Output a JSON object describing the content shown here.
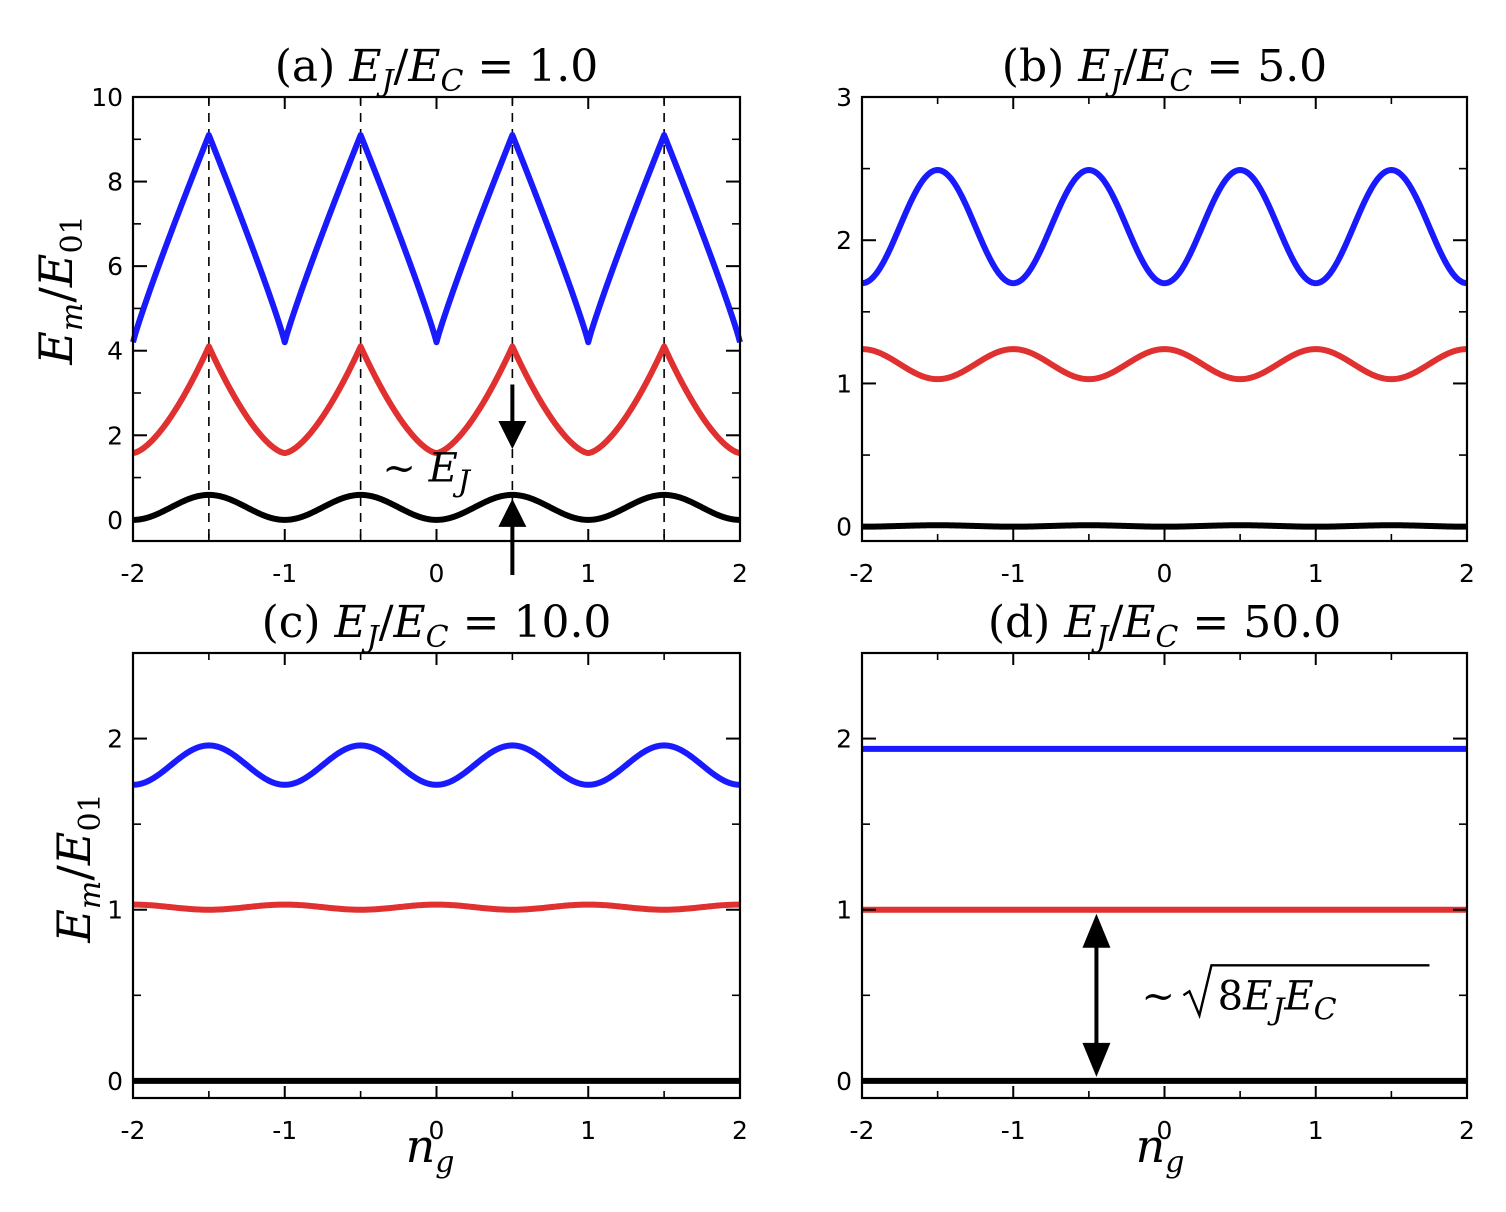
{
  "figure": {
    "ylabel_main": "E",
    "ylabel_sub": "m",
    "ylabel_den": "E",
    "ylabel_den_sub": "01",
    "xlabel_main": "n",
    "xlabel_sub": "g"
  },
  "colors": {
    "ground": "#000000",
    "first": "#e03030",
    "second": "#1a1aff"
  },
  "chart_data": [
    {
      "type": "line",
      "panel": "(a)",
      "title": "(a) E_J/E_C = 1.0",
      "title_parts": {
        "label": "(a)",
        "value": "1.0"
      },
      "ratio": 1.0,
      "xlim": [
        -2,
        2
      ],
      "ylim": [
        -0.5,
        10
      ],
      "xticks": [
        -2,
        -1,
        0,
        1,
        2
      ],
      "yticks": [
        0,
        2,
        4,
        6,
        8,
        10
      ],
      "xlabel": "",
      "ylabel": "E_m/E_01",
      "vlines": [
        -1.5,
        -0.5,
        0.5,
        1.5
      ],
      "series": [
        {
          "level": 0,
          "color": "#000000",
          "min": 0.0,
          "max": 0.59
        },
        {
          "level": 1,
          "color": "#e03030",
          "min": 1.58,
          "max": 4.1
        },
        {
          "level": 2,
          "color": "#1a1aff",
          "min": 4.2,
          "max": 9.1
        }
      ],
      "annotations": [
        {
          "text": "~ E_J",
          "main": "~ E",
          "sub": "J",
          "x": 0.5
        }
      ]
    },
    {
      "type": "line",
      "panel": "(b)",
      "title": "(b) E_J/E_C = 5.0",
      "title_parts": {
        "label": "(b)",
        "value": "5.0"
      },
      "ratio": 5.0,
      "xlim": [
        -2,
        2
      ],
      "ylim": [
        -0.1,
        3
      ],
      "xticks": [
        -2,
        -1,
        0,
        1,
        2
      ],
      "yticks": [
        0,
        1,
        2,
        3
      ],
      "xlabel": "",
      "ylabel": "",
      "series": [
        {
          "level": 0,
          "color": "#000000",
          "min": 0.0,
          "max": 0.01
        },
        {
          "level": 1,
          "color": "#e03030",
          "min": 1.03,
          "max": 1.24
        },
        {
          "level": 2,
          "color": "#1a1aff",
          "min": 1.7,
          "max": 2.49
        }
      ]
    },
    {
      "type": "line",
      "panel": "(c)",
      "title": "(c) E_J/E_C = 10.0",
      "title_parts": {
        "label": "(c)",
        "value": "10.0"
      },
      "ratio": 10.0,
      "xlim": [
        -2,
        2
      ],
      "ylim": [
        -0.1,
        2.5
      ],
      "xticks": [
        -2,
        -1,
        0,
        1,
        2
      ],
      "yticks": [
        0,
        1,
        2
      ],
      "xlabel": "n_g",
      "ylabel": "E_m/E_01",
      "series": [
        {
          "level": 0,
          "color": "#000000",
          "min": 0.0,
          "max": 0.0
        },
        {
          "level": 1,
          "color": "#e03030",
          "min": 1.0,
          "max": 1.03
        },
        {
          "level": 2,
          "color": "#1a1aff",
          "min": 1.73,
          "max": 1.96
        }
      ]
    },
    {
      "type": "line",
      "panel": "(d)",
      "title": "(d) E_J/E_C = 50.0",
      "title_parts": {
        "label": "(d)",
        "value": "50.0"
      },
      "ratio": 50.0,
      "xlim": [
        -2,
        2
      ],
      "ylim": [
        -0.1,
        2.5
      ],
      "xticks": [
        -2,
        -1,
        0,
        1,
        2
      ],
      "yticks": [
        0,
        1,
        2
      ],
      "xlabel": "n_g",
      "ylabel": "",
      "series": [
        {
          "level": 0,
          "color": "#000000",
          "min": 0.0,
          "max": 0.0
        },
        {
          "level": 1,
          "color": "#e03030",
          "min": 1.0,
          "max": 1.0
        },
        {
          "level": 2,
          "color": "#1a1aff",
          "min": 1.94,
          "max": 1.94
        }
      ],
      "annotations": [
        {
          "text": "~ √(8E_J E_C)",
          "main": "~ ",
          "radicand": "8E",
          "sub1": "J",
          "mid": "E",
          "sub2": "C",
          "x": -0.45
        }
      ]
    }
  ]
}
